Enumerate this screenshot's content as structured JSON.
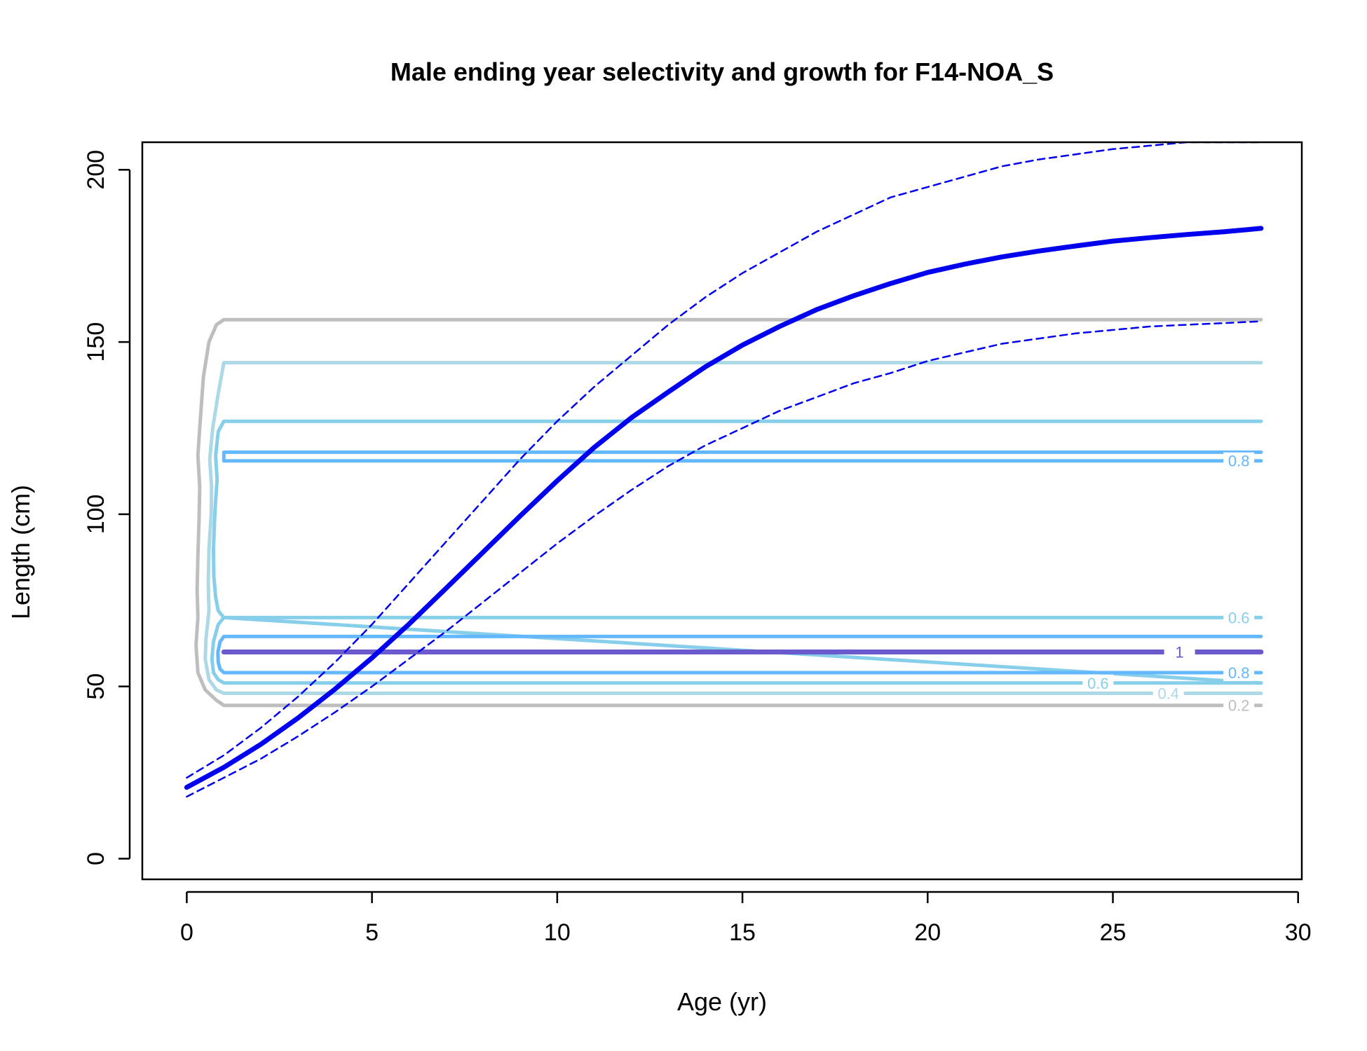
{
  "chart_data": {
    "type": "line",
    "title": "Male ending year selectivity and growth for F14-NOA_S",
    "xlabel": "Age (yr)",
    "ylabel": "Length (cm)",
    "xlim": [
      -1.2,
      30.1
    ],
    "ylim": [
      -6,
      208
    ],
    "xticks": [
      0,
      5,
      10,
      15,
      20,
      25,
      30
    ],
    "yticks": [
      0,
      50,
      100,
      150,
      200
    ],
    "grid": false,
    "legend": "none",
    "colors": {
      "growth": "#0000ee",
      "contour_0_2": "#bebebe",
      "contour_0_4": "#add8e6",
      "contour_0_6": "#87ceeb",
      "contour_0_8": "#63b8ff",
      "contour_1": "#6a5acd"
    },
    "series": [
      {
        "role": "mean",
        "style": "solid-thick",
        "x": [
          0,
          1,
          2,
          3,
          4,
          5,
          6,
          7,
          8,
          9,
          10,
          11,
          12,
          13,
          14,
          15,
          16,
          17,
          18,
          19,
          20,
          21,
          22,
          23,
          24,
          25,
          26,
          27,
          28,
          29
        ],
        "y": [
          20.7,
          26.5,
          33.2,
          40.8,
          49.2,
          58.3,
          68.1,
          78.5,
          89.0,
          99.5,
          109.7,
          119.4,
          128.0,
          135.5,
          142.8,
          149.1,
          154.5,
          159.4,
          163.4,
          167.0,
          170.2,
          172.6,
          174.7,
          176.4,
          177.9,
          179.3,
          180.3,
          181.2,
          182.0,
          183.0
        ]
      },
      {
        "role": "upper",
        "style": "dashed",
        "x": [
          0,
          1,
          2,
          3,
          4,
          5,
          6,
          7,
          8,
          9,
          10,
          11,
          12,
          13,
          14,
          15,
          16,
          17,
          18,
          19,
          20,
          21,
          22,
          23,
          24,
          25,
          26,
          27,
          28,
          29
        ],
        "y": [
          23.5,
          30.0,
          38.0,
          47.0,
          57.0,
          68.0,
          80.0,
          92.0,
          104.0,
          116.0,
          127.0,
          137.0,
          146.0,
          155.0,
          163.0,
          170.0,
          176.0,
          182.0,
          187.0,
          192.0,
          195.0,
          198.0,
          201.0,
          203.0,
          204.5,
          206.0,
          207.0,
          208.0,
          208.0,
          208.0
        ]
      },
      {
        "role": "lower",
        "style": "dashed",
        "x": [
          0,
          1,
          2,
          3,
          4,
          5,
          6,
          7,
          8,
          9,
          10,
          11,
          12,
          13,
          14,
          15,
          16,
          17,
          18,
          19,
          20,
          21,
          22,
          23,
          24,
          25,
          26,
          27,
          28,
          29
        ],
        "y": [
          18.0,
          23.5,
          29.0,
          35.5,
          42.5,
          50.0,
          58.0,
          66.0,
          74.5,
          83.0,
          91.5,
          99.5,
          107.0,
          114.0,
          120.0,
          125.0,
          130.0,
          134.0,
          138.0,
          141.0,
          144.5,
          147.0,
          149.5,
          151.0,
          152.5,
          153.5,
          154.5,
          155.0,
          155.5,
          156.0
        ]
      }
    ],
    "contours": [
      {
        "level": "0.2",
        "color_key": "contour_0_2",
        "upper_y": 156.5,
        "lower_y": 44.5,
        "label": "0.2",
        "label_at": [
          28.4,
          44.5
        ],
        "bulge": [
          [
            1.0,
            156.5
          ],
          [
            0.8,
            155
          ],
          [
            0.6,
            150
          ],
          [
            0.45,
            140
          ],
          [
            0.35,
            125
          ],
          [
            0.3,
            117
          ],
          [
            0.35,
            108
          ],
          [
            0.33,
            98
          ],
          [
            0.3,
            88
          ],
          [
            0.28,
            78
          ],
          [
            0.3,
            70
          ],
          [
            0.25,
            62
          ],
          [
            0.3,
            54
          ],
          [
            0.5,
            49
          ],
          [
            0.8,
            46
          ],
          [
            1.0,
            44.5
          ]
        ]
      },
      {
        "level": "0.4",
        "color_key": "contour_0_4",
        "upper_y": 144,
        "lower_y": 48,
        "label": "0.4",
        "label_at": [
          26.5,
          48
        ],
        "bulge": [
          [
            1.0,
            144
          ],
          [
            0.85,
            135
          ],
          [
            0.7,
            125
          ],
          [
            0.62,
            116
          ],
          [
            0.67,
            108
          ],
          [
            0.66,
            100
          ],
          [
            0.6,
            90
          ],
          [
            0.58,
            80
          ],
          [
            0.6,
            72
          ],
          [
            0.52,
            64
          ],
          [
            0.5,
            58
          ],
          [
            0.6,
            52
          ],
          [
            0.8,
            49
          ],
          [
            1.0,
            48
          ]
        ]
      },
      {
        "level": "0.6",
        "color_key": "contour_0_6",
        "upper_y": 127,
        "lower_y": 51,
        "label": "0.6",
        "label_at": [
          24.6,
          51
        ],
        "bulge": [
          [
            1.0,
            127
          ],
          [
            0.85,
            124
          ],
          [
            0.78,
            117
          ],
          [
            0.82,
            110
          ],
          [
            0.78,
            104
          ],
          [
            0.75,
            98
          ],
          [
            0.72,
            90
          ],
          [
            0.73,
            82
          ],
          [
            0.78,
            76
          ],
          [
            0.85,
            72
          ],
          [
            1.0,
            70
          ]
        ]
      },
      {
        "level": "0.6",
        "color_key": "contour_0_6",
        "upper_y": 70,
        "lower_y": 51,
        "label": "0.6",
        "label_at": [
          28.4,
          70
        ],
        "bulge": [
          [
            1.0,
            70
          ],
          [
            0.85,
            68
          ],
          [
            0.72,
            63
          ],
          [
            0.68,
            58
          ],
          [
            0.72,
            54
          ],
          [
            0.85,
            52
          ],
          [
            1.0,
            51
          ]
        ]
      },
      {
        "level": "0.8",
        "color_key": "contour_0_8",
        "upper_y": 118,
        "lower_y": 115.5,
        "label": "0.8",
        "label_at": [
          28.4,
          115.5
        ],
        "bulge": [
          [
            1.0,
            118
          ],
          [
            1.0,
            115.5
          ]
        ]
      },
      {
        "level": "0.8",
        "color_key": "contour_0_8",
        "upper_y": 64.5,
        "lower_y": 54,
        "label": "0.8",
        "label_at": [
          28.4,
          54
        ],
        "bulge": [
          [
            1.0,
            64.5
          ],
          [
            0.9,
            63
          ],
          [
            0.84,
            60
          ],
          [
            0.85,
            57
          ],
          [
            0.9,
            55
          ],
          [
            1.0,
            54
          ]
        ]
      },
      {
        "level": "1",
        "color_key": "contour_1",
        "upper_y": 60,
        "lower_y": 60,
        "label": "1",
        "label_at": [
          26.8,
          60
        ],
        "bulge": [
          [
            1.0,
            60
          ]
        ]
      }
    ]
  }
}
